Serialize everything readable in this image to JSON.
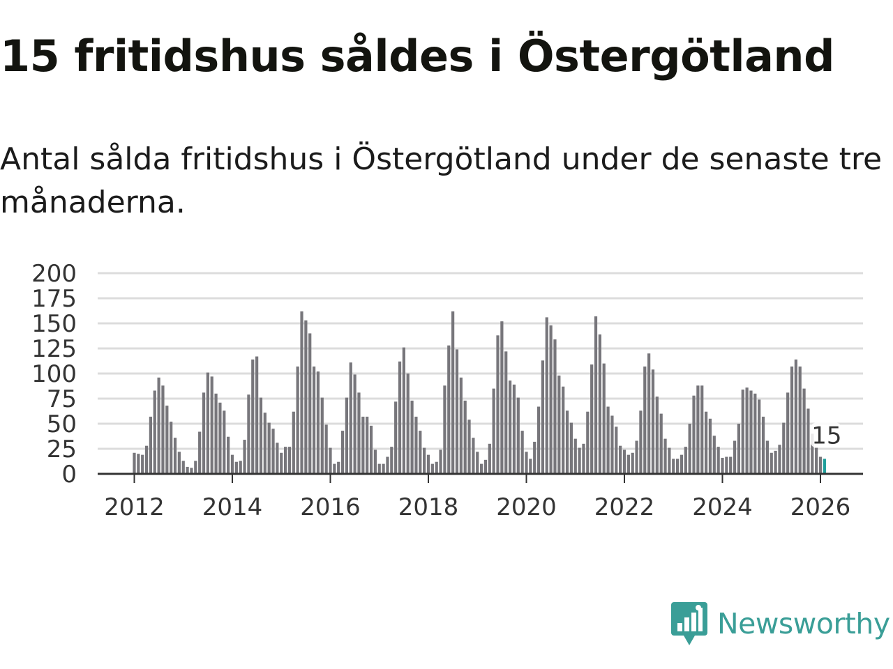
{
  "title": "15 fritidshus såldes i Östergötland",
  "subtitle": "Antal sålda fritidshus i Östergötland under de senaste tre månaderna.",
  "brand": {
    "name": "Newsworthy",
    "color": "#3a9e97",
    "icon": "chart-bubble-icon"
  },
  "chart_data": {
    "type": "bar",
    "start": "2012-01",
    "frequency": "monthly",
    "ylim": [
      0,
      200
    ],
    "yticks": [
      0,
      25,
      50,
      75,
      100,
      125,
      150,
      175,
      200
    ],
    "xticks": [
      "2012",
      "2014",
      "2016",
      "2018",
      "2020",
      "2022",
      "2024",
      "2026"
    ],
    "grid": true,
    "bar_color": "#77767b",
    "highlight_color": "#1e9e9a",
    "values": [
      21,
      20,
      19,
      28,
      57,
      83,
      96,
      88,
      68,
      52,
      36,
      22,
      13,
      7,
      6,
      13,
      42,
      81,
      101,
      97,
      80,
      71,
      63,
      37,
      19,
      12,
      13,
      34,
      79,
      114,
      117,
      76,
      61,
      51,
      45,
      31,
      21,
      27,
      27,
      62,
      107,
      162,
      153,
      140,
      107,
      102,
      76,
      49,
      26,
      10,
      12,
      43,
      76,
      111,
      99,
      81,
      57,
      57,
      48,
      24,
      10,
      10,
      17,
      27,
      72,
      112,
      126,
      100,
      73,
      57,
      43,
      26,
      19,
      10,
      12,
      24,
      88,
      128,
      162,
      124,
      96,
      73,
      54,
      36,
      22,
      10,
      14,
      30,
      85,
      138,
      152,
      122,
      93,
      89,
      76,
      43,
      22,
      15,
      32,
      67,
      113,
      156,
      148,
      134,
      98,
      87,
      63,
      51,
      35,
      26,
      30,
      62,
      109,
      157,
      139,
      110,
      67,
      58,
      47,
      28,
      24,
      19,
      21,
      33,
      63,
      107,
      120,
      104,
      77,
      60,
      35,
      26,
      15,
      15,
      19,
      27,
      50,
      78,
      88,
      88,
      62,
      55,
      38,
      27,
      16,
      17,
      17,
      33,
      50,
      84,
      86,
      83,
      80,
      74,
      57,
      33,
      21,
      23,
      29,
      51,
      81,
      107,
      114,
      107,
      85,
      65,
      40,
      26,
      17,
      15
    ],
    "highlight_last": true,
    "annotation": "15"
  }
}
